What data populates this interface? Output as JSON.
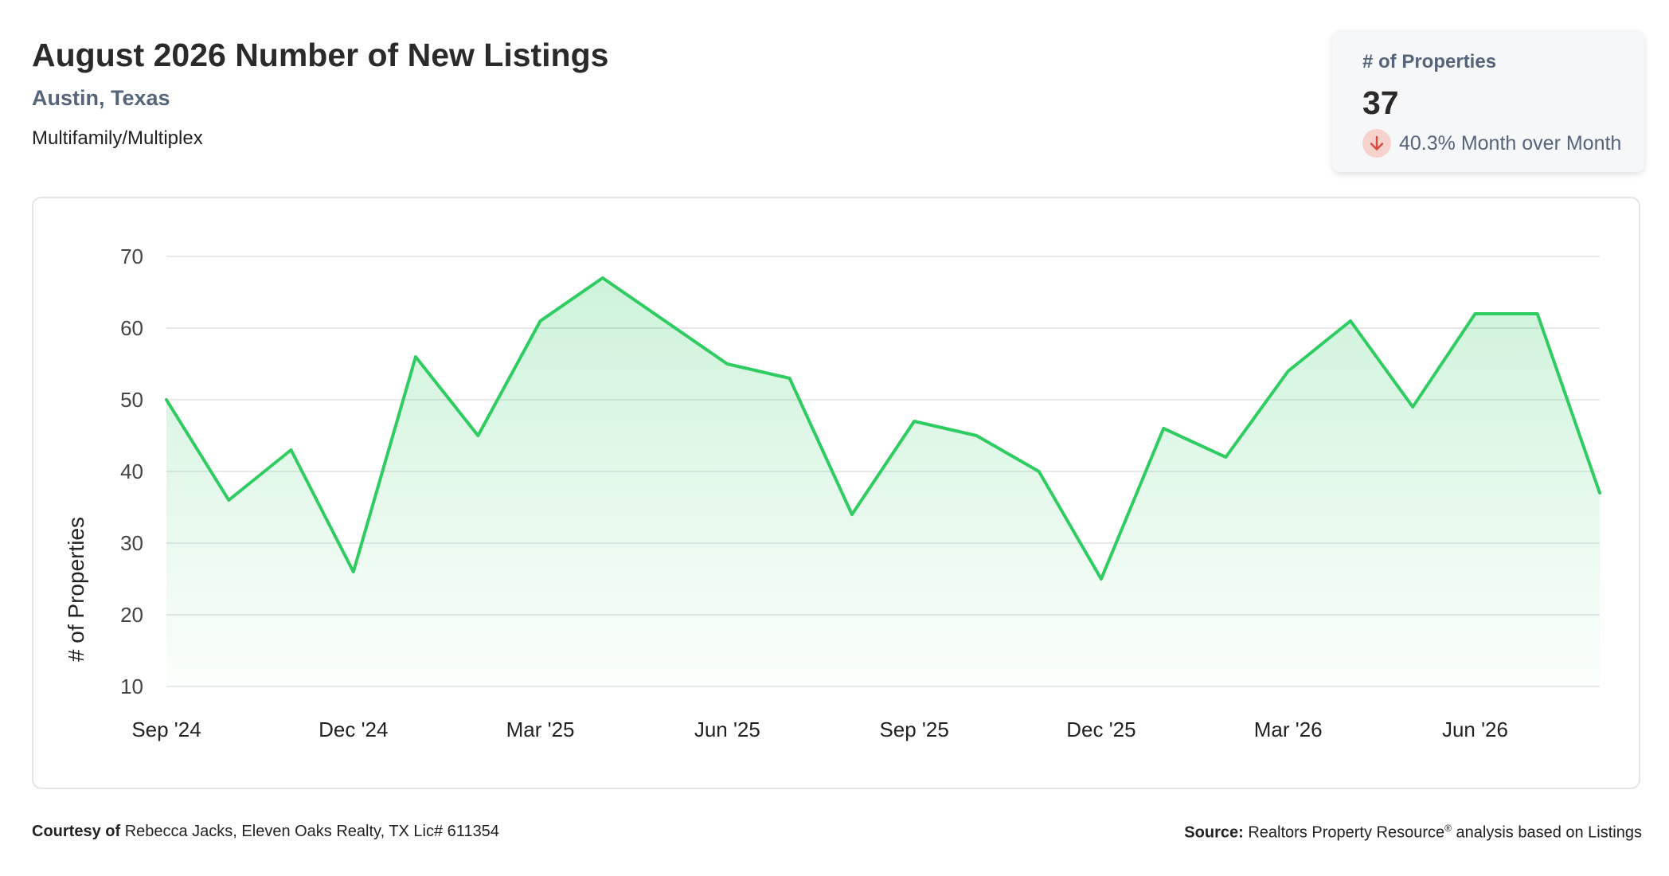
{
  "header": {
    "title": "August 2026 Number of New Listings",
    "location": "Austin, Texas",
    "property_type": "Multifamily/Multiplex"
  },
  "stat_card": {
    "label": "# of Properties",
    "value": "37",
    "change_text": "40.3% Month over Month",
    "direction": "down",
    "icon": "arrow-down-icon"
  },
  "footer": {
    "courtesy_label": "Courtesy of",
    "courtesy_text": "Rebecca Jacks, Eleven Oaks Realty, TX Lic# 611354",
    "source_label": "Source:",
    "source_name": "Realtors Property Resource",
    "source_mark": "®",
    "source_rest": "analysis based on Listings"
  },
  "colors": {
    "line": "#2ecc61",
    "fill": "#2ecc61",
    "grid": "#e2e2e2",
    "down": "#d9483b"
  },
  "chart_data": {
    "type": "area",
    "ylabel": "# of Properties",
    "xlabel": "",
    "ylim": [
      10,
      70
    ],
    "yticks": [
      10,
      20,
      30,
      40,
      50,
      60,
      70
    ],
    "x": [
      "Sep '24",
      "Oct '24",
      "Nov '24",
      "Dec '24",
      "Jan '25",
      "Feb '25",
      "Mar '25",
      "Apr '25",
      "May '25",
      "Jun '25",
      "Jul '25",
      "Aug '25",
      "Sep '25",
      "Oct '25",
      "Nov '25",
      "Dec '25",
      "Jan '26",
      "Feb '26",
      "Mar '26",
      "Apr '26",
      "May '26",
      "Jun '26",
      "Jul '26",
      "Aug '26"
    ],
    "xtick_labels": [
      "Sep '24",
      "Dec '24",
      "Mar '25",
      "Jun '25",
      "Sep '25",
      "Dec '25",
      "Mar '26",
      "Jun '26"
    ],
    "series": [
      {
        "values": [
          50,
          36,
          43,
          26,
          56,
          45,
          61,
          67,
          61,
          55,
          53,
          34,
          47,
          45,
          40,
          25,
          46,
          42,
          54,
          61,
          49,
          62,
          62,
          37
        ]
      }
    ],
    "grid": true,
    "legend": "none"
  }
}
